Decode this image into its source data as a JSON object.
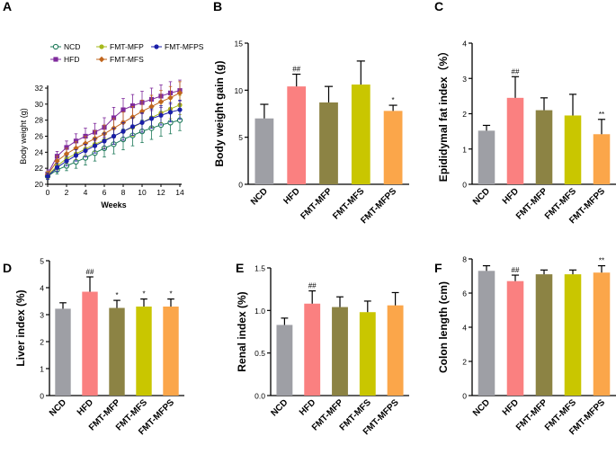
{
  "figure": {
    "groups": [
      "NCD",
      "HFD",
      "FMT-MFP",
      "FMT-MFS",
      "FMT-MFPS"
    ],
    "group_colors": [
      "#9e9fa5",
      "#fa8080",
      "#8c8344",
      "#c9c600",
      "#fba64a"
    ]
  },
  "chart_data": [
    {
      "id": "A",
      "panel_label": "A",
      "type": "line",
      "xlabel": "Weeks",
      "ylabel": "Body weight (g)",
      "xlim": [
        0,
        14
      ],
      "ylim": [
        20,
        32
      ],
      "xticks": [
        0,
        2,
        4,
        6,
        8,
        10,
        12,
        14
      ],
      "yticks": [
        20,
        22,
        24,
        26,
        28,
        30,
        32
      ],
      "x": [
        0,
        1,
        2,
        3,
        4,
        5,
        6,
        7,
        8,
        9,
        10,
        11,
        12,
        13,
        14
      ],
      "series": [
        {
          "name": "NCD",
          "color": "#1f7a5a",
          "marker": "circle-open",
          "values": [
            21.0,
            21.8,
            22.3,
            22.8,
            23.3,
            23.9,
            24.5,
            25.0,
            25.6,
            26.1,
            26.6,
            27.0,
            27.4,
            27.7,
            28.0
          ],
          "errors": [
            0.4,
            0.5,
            0.6,
            0.8,
            0.9,
            1.0,
            1.1,
            1.2,
            1.3,
            1.3,
            1.4,
            1.4,
            1.4,
            1.4,
            1.3
          ]
        },
        {
          "name": "HFD",
          "color": "#7f2a9c",
          "marker": "square",
          "values": [
            21.3,
            23.5,
            24.6,
            25.4,
            26.0,
            26.5,
            27.1,
            28.3,
            29.3,
            29.8,
            30.2,
            30.6,
            31.0,
            31.4,
            31.7
          ],
          "errors": [
            0.5,
            0.6,
            0.8,
            0.9,
            1.0,
            1.1,
            1.2,
            1.3,
            1.4,
            1.4,
            1.4,
            1.4,
            1.4,
            1.4,
            1.3
          ]
        },
        {
          "name": "FMT-MFP",
          "color": "#a6b91c",
          "marker": "circle",
          "values": [
            21.1,
            22.3,
            23.2,
            23.8,
            24.4,
            25.0,
            25.5,
            26.0,
            26.6,
            27.1,
            27.7,
            28.3,
            28.9,
            29.4,
            29.9
          ],
          "errors": [
            0.4,
            0.5,
            0.6,
            0.7,
            0.8,
            0.9,
            1.0,
            1.0,
            1.1,
            1.1,
            1.2,
            1.2,
            1.2,
            1.2,
            1.2
          ]
        },
        {
          "name": "FMT-MFS",
          "color": "#c0651c",
          "marker": "diamond",
          "values": [
            21.2,
            22.9,
            23.8,
            24.5,
            25.1,
            25.7,
            26.3,
            27.0,
            27.7,
            28.4,
            29.1,
            29.7,
            30.3,
            30.8,
            31.4
          ],
          "errors": [
            0.4,
            0.6,
            0.7,
            0.8,
            0.9,
            1.0,
            1.1,
            1.2,
            1.3,
            1.3,
            1.4,
            1.4,
            1.4,
            1.4,
            1.4
          ]
        },
        {
          "name": "FMT-MFPS",
          "color": "#1a1fa8",
          "marker": "circle",
          "values": [
            21.0,
            22.1,
            22.9,
            23.6,
            24.2,
            24.8,
            25.4,
            26.0,
            26.6,
            27.2,
            27.7,
            28.2,
            28.6,
            29.0,
            29.3
          ],
          "errors": [
            0.4,
            0.5,
            0.6,
            0.7,
            0.8,
            0.9,
            1.0,
            1.0,
            1.1,
            1.1,
            1.2,
            1.2,
            1.2,
            1.2,
            1.2
          ]
        }
      ],
      "legend": [
        "NCD",
        "FMT-MFP",
        "FMT-MFPS",
        "HFD",
        "FMT-MFS"
      ]
    },
    {
      "id": "B",
      "panel_label": "B",
      "type": "bar",
      "ylabel": "Body weight gain (g)",
      "ylim": [
        0,
        15
      ],
      "yticks": [
        0,
        5,
        10,
        15
      ],
      "categories": [
        "NCD",
        "HFD",
        "FMT-MFP",
        "FMT-MFS",
        "FMT-MFPS"
      ],
      "values": [
        7.0,
        10.4,
        8.7,
        10.6,
        7.8
      ],
      "errors": [
        1.5,
        1.3,
        1.7,
        2.5,
        0.6
      ],
      "annotations": [
        "",
        "##",
        "",
        "",
        "*"
      ]
    },
    {
      "id": "C",
      "panel_label": "C",
      "type": "bar",
      "ylabel": "Epididymal fat index（%）",
      "ylim": [
        0,
        4
      ],
      "yticks": [
        0,
        1,
        2,
        3,
        4
      ],
      "categories": [
        "NCD",
        "HFD",
        "FMT-MFP",
        "FMT-MFS",
        "FMT-MFPS"
      ],
      "values": [
        1.52,
        2.45,
        2.1,
        1.95,
        1.42
      ],
      "errors": [
        0.15,
        0.6,
        0.35,
        0.6,
        0.42
      ],
      "annotations": [
        "",
        "##",
        "",
        "",
        "**"
      ]
    },
    {
      "id": "D",
      "panel_label": "D",
      "type": "bar",
      "ylabel": "Liver index (%)",
      "ylim": [
        0,
        5
      ],
      "yticks": [
        0,
        1,
        2,
        3,
        4,
        5
      ],
      "categories": [
        "NCD",
        "HFD",
        "FMT-MFP",
        "FMT-MFS",
        "FMT-MFPS"
      ],
      "values": [
        3.22,
        3.85,
        3.25,
        3.3,
        3.3
      ],
      "errors": [
        0.22,
        0.55,
        0.28,
        0.28,
        0.28
      ],
      "annotations": [
        "",
        "##",
        "*",
        "*",
        "*"
      ]
    },
    {
      "id": "E",
      "panel_label": "E",
      "type": "bar",
      "ylabel": "Renal index (%)",
      "ylim": [
        0,
        1.5
      ],
      "yticks": [
        "0.0",
        "0.5",
        "1.0",
        "1.5"
      ],
      "categories": [
        "NCD",
        "HFD",
        "FMT-MFP",
        "FMT-MFS",
        "FMT-MFPS"
      ],
      "values": [
        0.83,
        1.08,
        1.04,
        0.98,
        1.06
      ],
      "errors": [
        0.08,
        0.15,
        0.12,
        0.13,
        0.15
      ],
      "annotations": [
        "",
        "##",
        "",
        "",
        ""
      ]
    },
    {
      "id": "F",
      "panel_label": "F",
      "type": "bar",
      "ylabel": "Colon length (cm)",
      "ylim": [
        0,
        8
      ],
      "yticks": [
        0,
        2,
        4,
        6,
        8
      ],
      "categories": [
        "NCD",
        "HFD",
        "FMT-MFP",
        "FMT-MFS",
        "FMT-MFPS"
      ],
      "values": [
        7.3,
        6.7,
        7.1,
        7.1,
        7.2
      ],
      "errors": [
        0.3,
        0.35,
        0.25,
        0.25,
        0.4
      ],
      "annotations": [
        "",
        "##",
        "",
        "",
        "**"
      ]
    }
  ]
}
